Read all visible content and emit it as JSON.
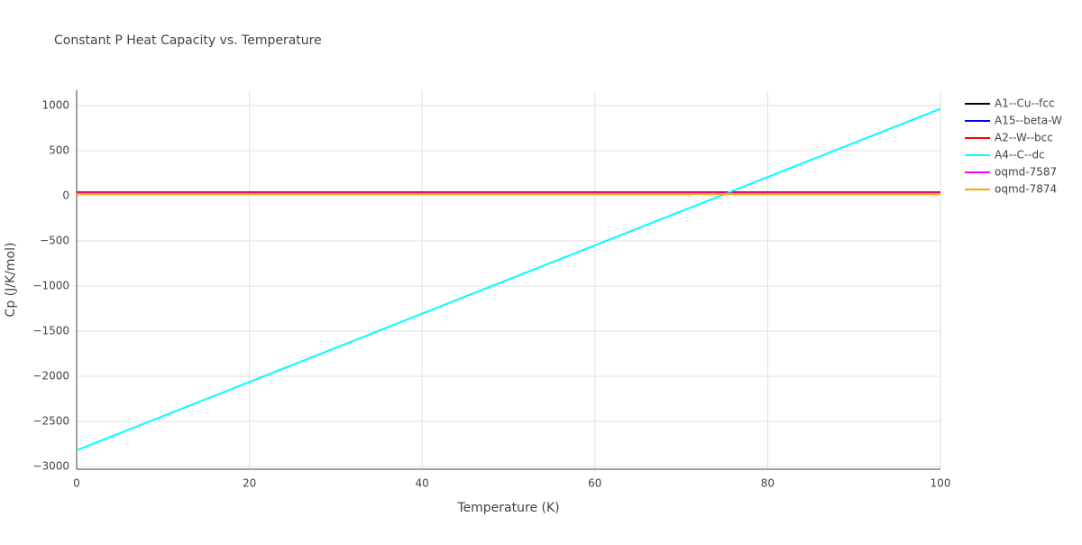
{
  "chart_data": {
    "type": "line",
    "title": "Constant P Heat Capacity vs. Temperature",
    "x_label": "Temperature (K)",
    "y_label": "Cp (J/K/mol)",
    "x": [
      0,
      20,
      40,
      60,
      80,
      100
    ],
    "series": [
      {
        "name": "A1--Cu--fcc",
        "color": "#000000",
        "values": [
          38,
          38,
          38,
          38,
          38,
          38
        ]
      },
      {
        "name": "A15--beta-W",
        "color": "#0000ff",
        "values": [
          32,
          32,
          32,
          32,
          32,
          32
        ]
      },
      {
        "name": "A2--W--bcc",
        "color": "#ff0000",
        "values": [
          30,
          30,
          30,
          30,
          30,
          30
        ]
      },
      {
        "name": "A4--C--dc",
        "color": "#00ffff",
        "values": [
          -2820,
          -2063,
          -1306,
          -549,
          208,
          965
        ]
      },
      {
        "name": "oqmd-7587",
        "color": "#ff00ff",
        "values": [
          25,
          25,
          25,
          25,
          25,
          25
        ]
      },
      {
        "name": "oqmd-7874",
        "color": "#ffa500",
        "values": [
          20,
          20,
          20,
          20,
          20,
          20
        ]
      }
    ],
    "xlim": [
      0,
      100
    ],
    "xticks": [
      0,
      20,
      40,
      60,
      80,
      100
    ],
    "ylim": [
      -3030,
      1170
    ],
    "yticks": [
      {
        "value": -3000,
        "label": "−3000"
      },
      {
        "value": -2500,
        "label": "−2500"
      },
      {
        "value": -2000,
        "label": "−2000"
      },
      {
        "value": -1500,
        "label": "−1500"
      },
      {
        "value": -1000,
        "label": "−1000"
      },
      {
        "value": -500,
        "label": "−500"
      },
      0,
      500,
      1000
    ],
    "grid": true
  }
}
